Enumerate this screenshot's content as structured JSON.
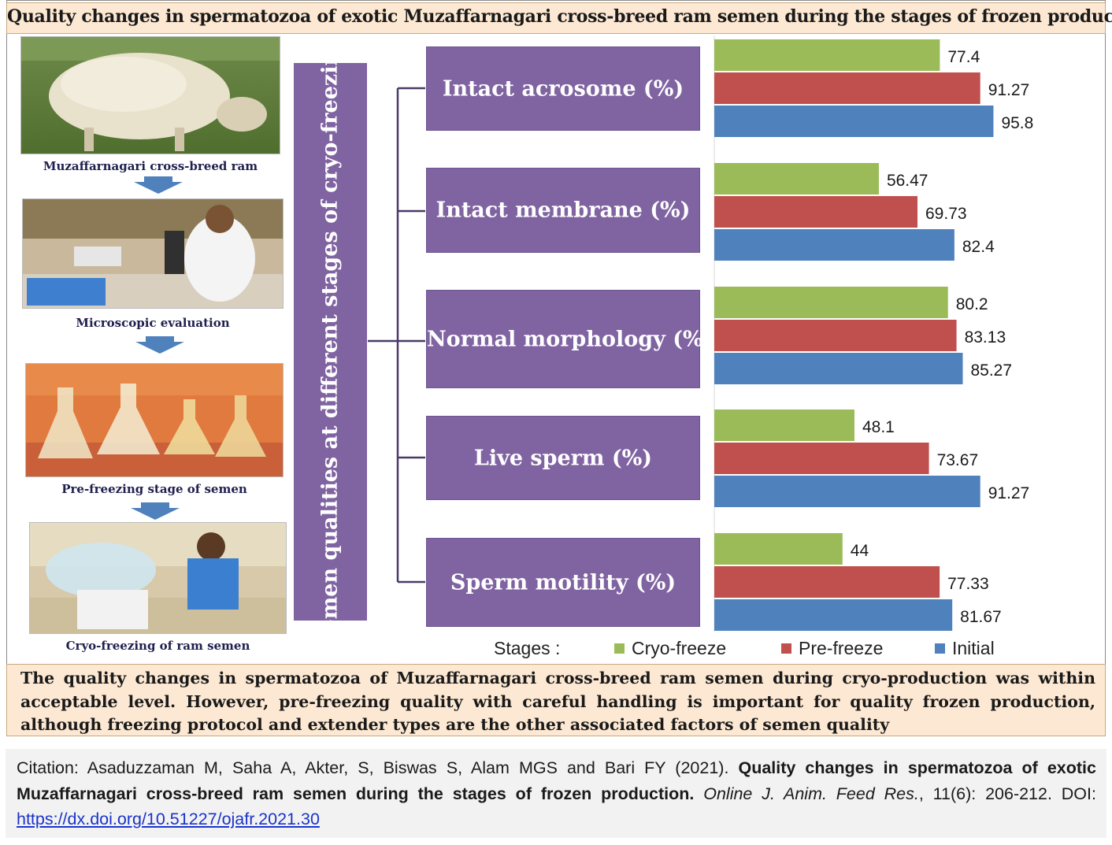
{
  "title": "Quality changes in spermatozoa of exotic Muzaffarnagari cross-breed ram semen during the stages of frozen production",
  "process_steps": [
    {
      "caption": "Muzaffarnagari  cross-breed ram"
    },
    {
      "caption": "Microscopic  evaluation"
    },
    {
      "caption": "Pre-freezing  stage of  semen"
    },
    {
      "caption": "Cryo-freezing  of ram  semen"
    }
  ],
  "banner_label": "Semen qualities at different stages of cryo-freezing",
  "colors": {
    "cryo_freeze": "#9bbb59",
    "pre_freeze": "#c0504d",
    "initial": "#4f81bd",
    "purple": "#8064a2",
    "peach": "#fde9d3"
  },
  "chart_data": {
    "type": "bar",
    "orientation": "horizontal",
    "categories": [
      "Intact acrosome (%)",
      "Intact membrane (%)",
      "Normal morphology (%)",
      "Live sperm (%)",
      "Sperm motility (%)"
    ],
    "series": [
      {
        "name": "Cryo-freeze",
        "color": "#9bbb59",
        "values": [
          77.4,
          56.47,
          80.2,
          48.1,
          44
        ]
      },
      {
        "name": "Pre-freeze",
        "color": "#c0504d",
        "values": [
          91.27,
          69.73,
          83.13,
          73.67,
          77.33
        ]
      },
      {
        "name": "Initial",
        "color": "#4f81bd",
        "values": [
          95.8,
          82.4,
          85.27,
          91.27,
          81.67
        ]
      }
    ],
    "data_labels": [
      [
        "77.4",
        "91.27",
        "95.8"
      ],
      [
        "56.47",
        "69.73",
        "82.4"
      ],
      [
        "80.2",
        "83.13",
        "85.27"
      ],
      [
        "48.1",
        "73.67",
        "91.27"
      ],
      [
        "44",
        "77.33",
        "81.67"
      ]
    ],
    "legend_title": "Stages :",
    "legend_position": "bottom",
    "grid": false
  },
  "summary": "The quality changes in spermatozoa of Muzaffarnagari cross-breed ram semen during cryo-production was within acceptable level. However, pre-freezing quality with careful handling is important for quality frozen production, although freezing protocol and extender types are the other associated factors of semen quality",
  "citation": {
    "prefix": "Citation: Asaduzzaman M, Saha A, Akter, S, Biswas S, Alam MGS and Bari FY (2021). ",
    "article_title": "Quality changes in spermatozoa of exotic Muzaffarnagari cross-breed ram semen during the stages of frozen production.",
    "journal": "Online J. Anim. Feed Res.",
    "volume_pages": ", 11(6): 206-212. DOI: ",
    "doi_link": "https://dx.doi.org/10.51227/ojafr.2021.30"
  }
}
